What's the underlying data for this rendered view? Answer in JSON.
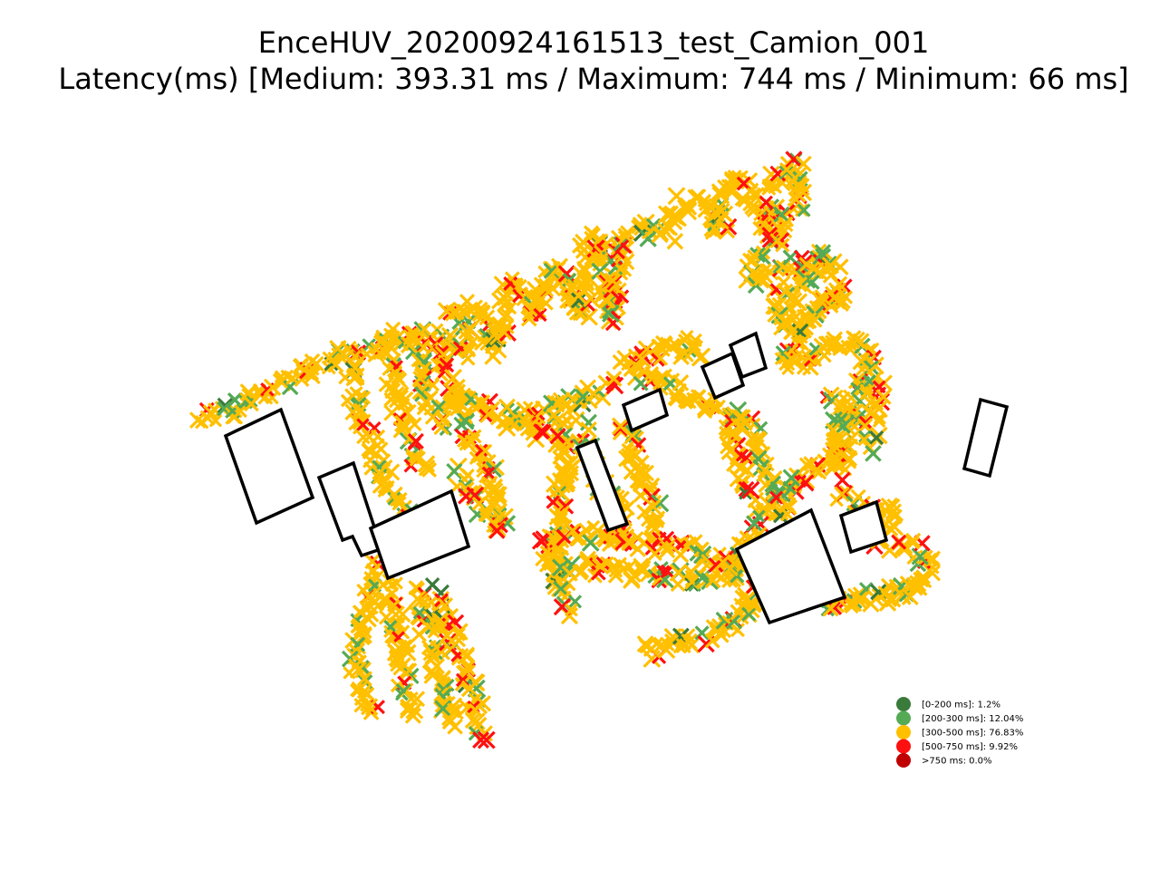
{
  "chart_data": {
    "type": "scatter",
    "title": "EnceHUV_20200924161513_test_Camion_001",
    "subtitle": "Latency(ms) [Medium: 393.31 ms / Maximum: 744 ms / Minimum: 66 ms]",
    "marker": "x",
    "axes_visible": false,
    "legend_placement": "lower-right",
    "legend": [
      {
        "label": "[0-200 ms]: 1.2%",
        "color": "#3a7a3a",
        "share": 1.2
      },
      {
        "label": "[200-300 ms]: 12.04%",
        "color": "#55aa55",
        "share": 12.04
      },
      {
        "label": "[300-500 ms]: 76.83%",
        "color": "#ffc000",
        "share": 76.83
      },
      {
        "label": "[500-750 ms]: 9.92%",
        "color": "#ff1010",
        "share": 9.92
      },
      {
        "label": ">750 ms: 0.0%",
        "color": "#c00000",
        "share": 0.0
      }
    ],
    "outline_color": "#000000"
  }
}
